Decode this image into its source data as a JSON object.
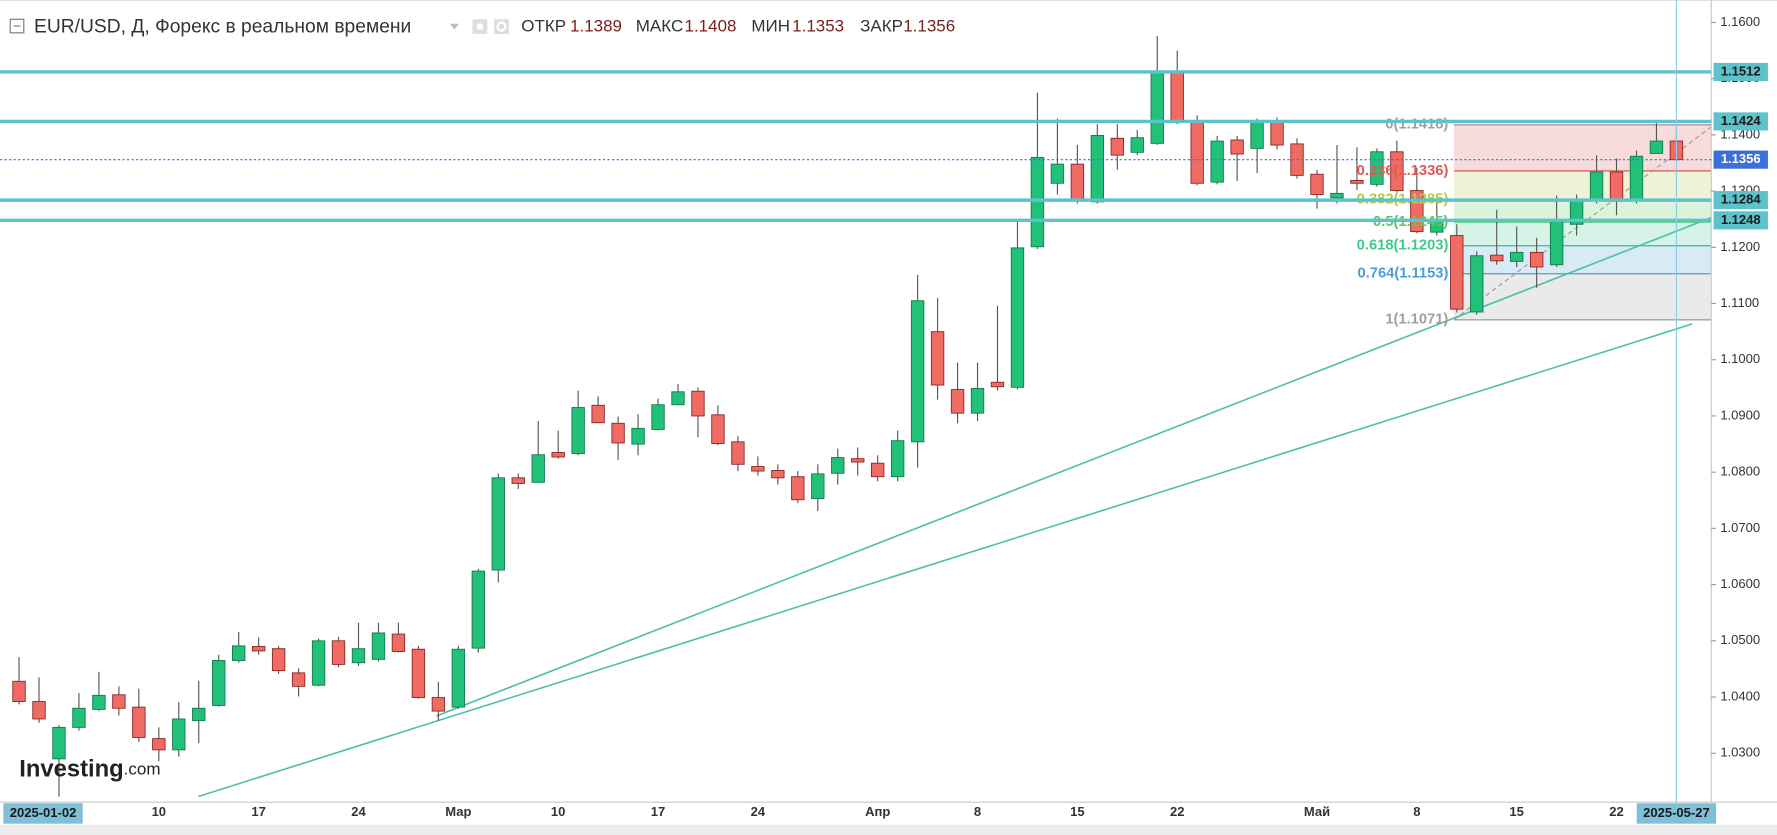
{
  "chart_data": {
    "type": "candlestick",
    "title": "EUR/USD, Д, Форекс в реальном времени",
    "ohlc_labels": [
      "ОТКР",
      "МАКС",
      "МИН",
      "ЗАКР"
    ],
    "start_date_label": "2025-01-02",
    "cursor_date_label": "2025-05-27",
    "watermark": {
      "brand": "Investing",
      "suffix": ".com"
    },
    "categories": [
      null,
      null,
      null,
      null,
      null,
      null,
      null,
      "10",
      null,
      null,
      null,
      null,
      "17",
      null,
      null,
      null,
      null,
      "24",
      null,
      null,
      null,
      null,
      "Мар",
      null,
      null,
      null,
      null,
      "10",
      null,
      null,
      null,
      null,
      "17",
      null,
      null,
      null,
      null,
      "24",
      null,
      null,
      null,
      null,
      null,
      "Апр",
      null,
      null,
      null,
      null,
      "8",
      null,
      null,
      null,
      null,
      "15",
      null,
      null,
      null,
      null,
      "22",
      null,
      null,
      null,
      null,
      null,
      null,
      "Май",
      null,
      null,
      null,
      null,
      "8",
      null,
      null,
      null,
      null,
      "15",
      null,
      null,
      null,
      null,
      "22",
      null,
      null,
      null
    ],
    "open": [
      1.0428,
      1.0392,
      1.029,
      1.0346,
      1.0378,
      1.0404,
      1.0382,
      1.0326,
      1.0306,
      1.0358,
      1.0385,
      1.0465,
      1.049,
      1.0486,
      1.0443,
      1.0421,
      1.05,
      1.0461,
      1.0467,
      1.0512,
      1.0485,
      1.0399,
      1.0382,
      1.0487,
      1.0626,
      1.079,
      1.0782,
      1.0835,
      1.0833,
      1.0919,
      1.0887,
      1.085,
      1.0876,
      1.092,
      1.0944,
      1.0902,
      1.0854,
      1.081,
      1.0803,
      1.0792,
      1.0753,
      1.0798,
      1.0824,
      1.0816,
      1.0792,
      1.0854,
      1.105,
      1.0947,
      1.0905,
      1.096,
      1.0951,
      1.1201,
      1.1314,
      1.1348,
      1.1281,
      1.1394,
      1.1369,
      1.1385,
      1.1513,
      1.1424,
      1.1316,
      1.1391,
      1.1376,
      1.1422,
      1.1384,
      1.133,
      1.1288,
      1.1319,
      1.1312,
      1.137,
      1.1301,
      1.1227,
      1.1221,
      1.1085,
      1.1186,
      1.1175,
      1.1191,
      1.1169,
      1.1241,
      1.1285,
      1.1334,
      1.1283,
      1.1367,
      1.1389
    ],
    "high": [
      1.0471,
      1.0435,
      1.035,
      1.0407,
      1.0445,
      1.0419,
      1.0415,
      1.0346,
      1.0391,
      1.0429,
      1.0475,
      1.0516,
      1.0506,
      1.0491,
      1.0451,
      1.0504,
      1.0507,
      1.0532,
      1.0532,
      1.0532,
      1.0491,
      1.0427,
      1.0491,
      1.0628,
      1.0798,
      1.0798,
      1.0891,
      1.0874,
      1.0945,
      1.0935,
      1.0899,
      1.0903,
      1.0931,
      1.0957,
      1.0951,
      1.0919,
      1.0864,
      1.0828,
      1.0814,
      1.0802,
      1.0814,
      1.0842,
      1.0844,
      1.083,
      1.0874,
      1.1151,
      1.111,
      1.0995,
      1.0995,
      1.1096,
      1.1247,
      1.1475,
      1.1429,
      1.1382,
      1.1419,
      1.1419,
      1.1409,
      1.1576,
      1.155,
      1.1435,
      1.1398,
      1.1398,
      1.1429,
      1.1431,
      1.1394,
      1.1338,
      1.1382,
      1.1378,
      1.1376,
      1.139,
      1.1342,
      1.1294,
      1.1241,
      1.1193,
      1.1267,
      1.1237,
      1.1217,
      1.1292,
      1.1294,
      1.1364,
      1.1358,
      1.1372,
      1.1423,
      1.1408
    ],
    "low": [
      1.0387,
      1.0354,
      1.0223,
      1.034,
      1.0375,
      1.0367,
      1.032,
      1.0286,
      1.0294,
      1.0318,
      1.0383,
      1.0461,
      1.0475,
      1.0441,
      1.0401,
      1.0419,
      1.0453,
      1.0455,
      1.0463,
      1.0479,
      1.0397,
      1.0358,
      1.0379,
      1.0479,
      1.0604,
      1.077,
      1.0784,
      1.0824,
      1.083,
      1.0887,
      1.0822,
      1.083,
      1.0874,
      1.0919,
      1.0862,
      1.0848,
      1.0802,
      1.0794,
      1.0778,
      1.0745,
      1.0731,
      1.0778,
      1.0794,
      1.0784,
      1.0784,
      1.0808,
      1.0929,
      1.0887,
      1.0891,
      1.0945,
      1.0947,
      1.1197,
      1.1294,
      1.1278,
      1.1278,
      1.1338,
      1.1364,
      1.1382,
      1.1419,
      1.131,
      1.1312,
      1.1318,
      1.1332,
      1.1374,
      1.1322,
      1.1269,
      1.1278,
      1.1302,
      1.1308,
      1.1298,
      1.1225,
      1.1221,
      1.1084,
      1.108,
      1.1169,
      1.1165,
      1.1128,
      1.1165,
      1.1221,
      1.1278,
      1.1257,
      1.1278,
      1.137,
      1.1353
    ],
    "close": [
      1.0392,
      1.0361,
      1.0346,
      1.038,
      1.0403,
      1.038,
      1.0328,
      1.0306,
      1.0361,
      1.038,
      1.0465,
      1.0491,
      1.0482,
      1.0447,
      1.0419,
      1.05,
      1.0458,
      1.0486,
      1.0514,
      1.0481,
      1.0399,
      1.0375,
      1.0485,
      1.0624,
      1.079,
      1.078,
      1.0831,
      1.0827,
      1.0915,
      1.0888,
      1.0852,
      1.0878,
      1.092,
      1.0943,
      1.09,
      1.0851,
      1.0814,
      1.0802,
      1.079,
      1.0751,
      1.0797,
      1.0826,
      1.0818,
      1.0792,
      1.0856,
      1.1105,
      1.0955,
      1.0905,
      1.0949,
      1.0952,
      1.1199,
      1.136,
      1.1348,
      1.1283,
      1.1399,
      1.1364,
      1.1395,
      1.1512,
      1.1422,
      1.1314,
      1.1389,
      1.1366,
      1.1424,
      1.1382,
      1.1328,
      1.1294,
      1.1296,
      1.1314,
      1.137,
      1.1301,
      1.1228,
      1.1247,
      1.109,
      1.1185,
      1.1176,
      1.1191,
      1.1165,
      1.1247,
      1.1285,
      1.1334,
      1.1282,
      1.1362,
      1.1389,
      1.1356
    ],
    "up_color": "#22c17a",
    "down_color": "#f06b63",
    "ylim": [
      1.0213,
      1.164
    ],
    "yticks": [
      {
        "value": 1.16,
        "label": "1.1600"
      },
      {
        "value": 1.15,
        "label": "1.1500"
      },
      {
        "value": 1.14,
        "label": "1.1400"
      },
      {
        "value": 1.13,
        "label": "1.1300"
      },
      {
        "value": 1.12,
        "label": "1.1200"
      },
      {
        "value": 1.11,
        "label": "1.1100"
      },
      {
        "value": 1.1,
        "label": "1.1000"
      },
      {
        "value": 1.09,
        "label": "1.0900"
      },
      {
        "value": 1.08,
        "label": "1.0800"
      },
      {
        "value": 1.07,
        "label": "1.0700"
      },
      {
        "value": 1.06,
        "label": "1.0600"
      },
      {
        "value": 1.05,
        "label": "1.0500"
      },
      {
        "value": 1.04,
        "label": "1.0400"
      },
      {
        "value": 1.03,
        "label": "1.0300"
      }
    ],
    "grid": false,
    "levels": [
      1.1512,
      1.1424,
      1.1284,
      1.1248
    ],
    "level_color": "#5cc3cc",
    "last_price_color": "#3d6fd8",
    "fib_levels": [
      {
        "value": 1.1418,
        "label": "0(1.1418)",
        "color": "#a0a0a0"
      },
      {
        "value": 1.1336,
        "label": "0.236(1.1336)",
        "color": "#e05a5a"
      },
      {
        "value": 1.1285,
        "label": "0.382(1.1285)",
        "color": "#b8c94a"
      },
      {
        "value": 1.1245,
        "label": "0.5(1.1245)",
        "color": "#5cc85c"
      },
      {
        "value": 1.1203,
        "label": "0.618(1.1203)",
        "color": "#3fc98f"
      },
      {
        "value": 1.1153,
        "label": "0.764(1.1153)",
        "color": "#4a9fd0"
      },
      {
        "value": 1.1071,
        "label": "1(1.1071)",
        "color": "#a0a0a0"
      }
    ]
  }
}
